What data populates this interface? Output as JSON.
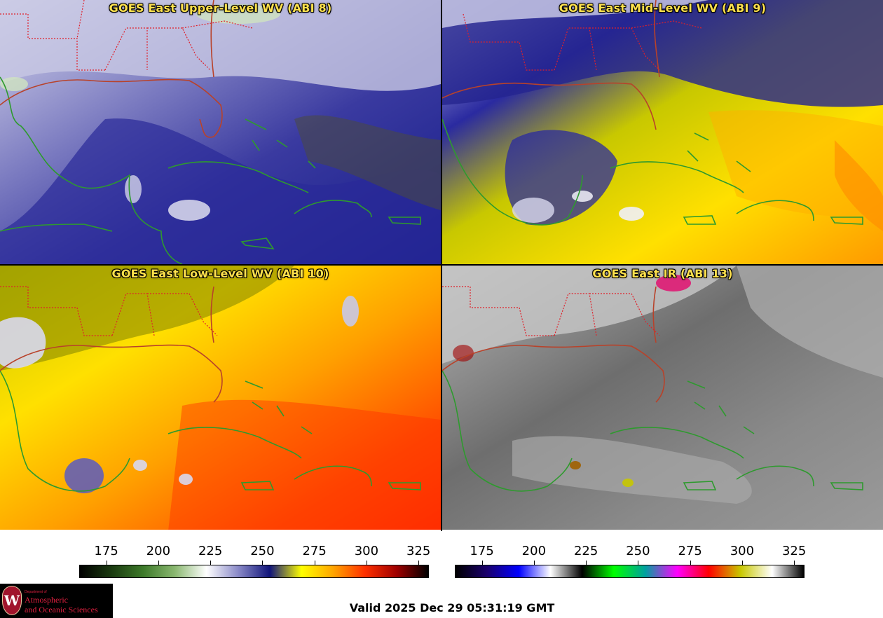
{
  "panels": [
    {
      "title": "GOES East Upper-Level WV (ABI 8)"
    },
    {
      "title": "GOES East Mid-Level WV (ABI 9)"
    },
    {
      "title": "GOES East Low-Level WV (ABI 10)"
    },
    {
      "title": "GOES East IR (ABI 13)"
    }
  ],
  "colorbars": {
    "ticks": [
      175,
      200,
      225,
      250,
      275,
      300,
      325
    ],
    "range": [
      162,
      330
    ],
    "wv_colors": [
      "#000000",
      "#1a3a10",
      "#3d7a2a",
      "#8ab870",
      "#ffffff",
      "#8a8ac8",
      "#10147a",
      "#ffff00",
      "#ffa500",
      "#ff3000",
      "#a00000",
      "#000000"
    ],
    "ir_colors": [
      "#000000",
      "#1a006e",
      "#0000ff",
      "#ffffff",
      "#000000",
      "#00ff00",
      "#00a0a0",
      "#ff00ff",
      "#ff0000",
      "#c8c800",
      "#ffffff",
      "#000000"
    ]
  },
  "logo": {
    "seal": "W",
    "dept": "Department of",
    "line1": "Atmospheric",
    "line2": "and Oceanic Sciences"
  },
  "footer": {
    "valid": "Valid 2025 Dec 29 05:31:19 GMT"
  },
  "colors": {
    "title": "#ffe14d",
    "coast": "#2e9a2e",
    "state_border": "#e0202a"
  }
}
